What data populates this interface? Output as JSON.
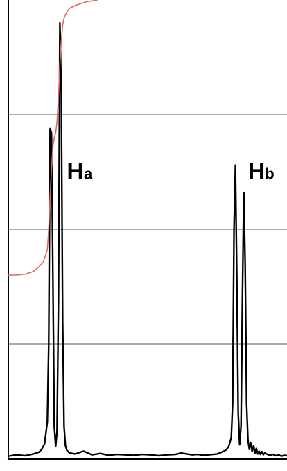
{
  "chart_data": {
    "type": "line",
    "title": "",
    "xlabel": "",
    "ylabel": "",
    "xlim": [
      0,
      100
    ],
    "ylim": [
      0,
      100
    ],
    "grid": {
      "horizontal": true,
      "y_values": [
        25,
        50,
        75
      ]
    },
    "colors": {
      "spectrum": "#000000",
      "integral": "#e06666",
      "gridline": "#555555",
      "frame": "#000000"
    },
    "peak_labels": [
      {
        "main": "H",
        "sub": "a",
        "x": 21,
        "y": 61
      },
      {
        "main": "H",
        "sub": "b",
        "x": 86,
        "y": 61
      }
    ],
    "series": [
      {
        "kind": "spectrum",
        "x": [
          0,
          3,
          6,
          9,
          11,
          12,
          13,
          14,
          14.5,
          15,
          15.5,
          16,
          16.5,
          17,
          17.5,
          18,
          18.5,
          19,
          19.5,
          20,
          20.5,
          21,
          22,
          24,
          27,
          30,
          33,
          36,
          39,
          42,
          45,
          48,
          51,
          54,
          57,
          60,
          62,
          64,
          66,
          68,
          70,
          72,
          75,
          77,
          78,
          79,
          80,
          80.5,
          81,
          81.5,
          82,
          82.5,
          83,
          83.5,
          84,
          84.5,
          85,
          85.5,
          86,
          86.5,
          87,
          87.5,
          88,
          88.5,
          89,
          89.5,
          90,
          90.5,
          91,
          91.5,
          92,
          93,
          94,
          95,
          96,
          97,
          98,
          99,
          100
        ],
        "y": [
          0.5,
          0.8,
          0.6,
          1.0,
          1.4,
          2.0,
          3.2,
          8.0,
          25.0,
          72.0,
          71.0,
          40.0,
          7.0,
          2.6,
          6.0,
          35.0,
          95.0,
          80.0,
          30.0,
          7.0,
          2.8,
          1.8,
          1.2,
          1.0,
          1.6,
          0.8,
          1.1,
          0.7,
          0.9,
          0.8,
          0.7,
          0.9,
          0.8,
          0.6,
          0.8,
          0.9,
          1.2,
          1.0,
          0.8,
          0.9,
          0.7,
          0.8,
          1.0,
          1.5,
          1.8,
          2.5,
          4.5,
          12.0,
          50.0,
          64.0,
          40.0,
          10.0,
          3.0,
          7.0,
          35.0,
          58.0,
          42.0,
          12.0,
          4.0,
          2.0,
          3.5,
          1.5,
          2.8,
          1.2,
          2.2,
          1.0,
          1.6,
          0.9,
          1.5,
          0.8,
          1.2,
          0.9,
          0.7,
          0.9,
          0.6,
          0.8,
          0.5,
          0.7,
          0.6
        ]
      },
      {
        "kind": "integral",
        "x": [
          0,
          3,
          6,
          9,
          11,
          12.5,
          14,
          14.5,
          15,
          15.5,
          16,
          16.5,
          17,
          17.5,
          18,
          18.5,
          19,
          19.5,
          20,
          20.5,
          21,
          22,
          24,
          26,
          28,
          30,
          32
        ],
        "y": [
          40.0,
          40.0,
          40.2,
          40.8,
          41.8,
          42.8,
          45.5,
          50.0,
          57.0,
          63.0,
          68.0,
          70.0,
          71.0,
          73.5,
          79.0,
          86.0,
          91.0,
          94.5,
          96.0,
          96.8,
          97.4,
          98.2,
          98.8,
          99.2,
          99.6,
          99.8,
          100.0
        ]
      }
    ]
  }
}
